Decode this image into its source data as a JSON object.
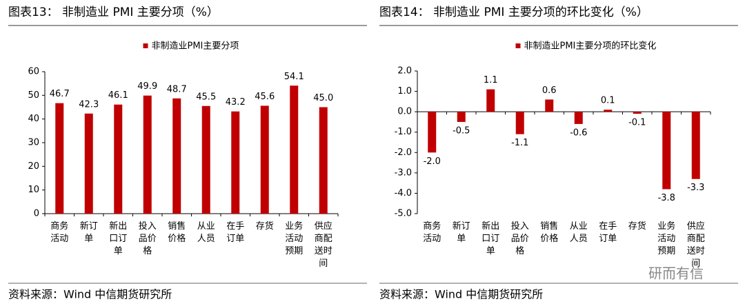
{
  "chart_data": [
    {
      "type": "bar",
      "title": "图表13： 非制造业 PMI 主要分项（%）",
      "legend": "非制造业PMI主要分项",
      "series": [
        {
          "name": "非制造业PMI主要分项",
          "color": "#c00000",
          "values": [
            46.7,
            42.3,
            46.1,
            49.9,
            48.7,
            45.5,
            43.2,
            45.6,
            54.1,
            45.0
          ],
          "value_labels": [
            "46.7",
            "42.3",
            "46.1",
            "49.9",
            "48.7",
            "45.5",
            "43.2",
            "45.6",
            "54.1",
            "45.0"
          ]
        }
      ],
      "categories": [
        "商务活动",
        "新订单",
        "新出口订单",
        "投入品价格",
        "销售价格",
        "从业人员",
        "在手订单",
        "存货",
        "业务活动预期",
        "供应商配送时间"
      ],
      "ylim": [
        0,
        60
      ],
      "yticks": [
        0,
        10,
        20,
        30,
        40,
        50,
        60
      ],
      "source": "资料来源：Wind 中信期货研究所"
    },
    {
      "type": "bar",
      "title": "图表14： 非制造业 PMI 主要分项的环比变化（%）",
      "series": [
        {
          "name": "非制造业PMI主要分项的环比变化",
          "color": "#c00000",
          "values": [
            -2.0,
            -0.5,
            1.1,
            -1.1,
            0.6,
            -0.6,
            0.1,
            -0.1,
            -3.8,
            -3.3
          ],
          "value_labels": [
            "-2.0",
            "-0.5",
            "1.1",
            "-1.1",
            "0.6",
            "-0.6",
            "0.1",
            "-0.1",
            "-3.8",
            "-3.3"
          ]
        }
      ],
      "categories": [
        "商务活动",
        "新订单",
        "新出口订单",
        "投入品价格",
        "销售价格",
        "从业人员",
        "在手订单",
        "存货",
        "业务活动预期",
        "供应商配送时间"
      ],
      "ylim": [
        -5,
        2
      ],
      "yticks": [
        {
          "value": -5,
          "label": "-5.0"
        },
        {
          "value": -4,
          "label": "-4.0"
        },
        {
          "value": -3,
          "label": "-3.0"
        },
        {
          "value": -2,
          "label": "-2.0"
        },
        {
          "value": -1,
          "label": "-1.0"
        },
        {
          "value": 0,
          "label": "0.0"
        },
        {
          "value": 1,
          "label": "1.0"
        },
        {
          "value": 2,
          "label": "2.0"
        }
      ],
      "source": "资料来源：Wind 中信期货研究所"
    }
  ],
  "watermark": "研而有信"
}
